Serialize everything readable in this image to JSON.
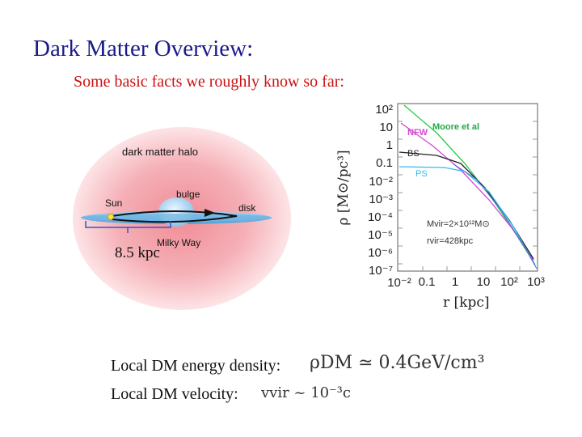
{
  "slide": {
    "title": "Dark Matter Overview:",
    "subtitle": "Some basic facts we roughly know so far:"
  },
  "halo_figure": {
    "halo_label": "dark matter halo",
    "bulge_label": "bulge",
    "sun_label": "Sun",
    "disk_label": "disk",
    "milky_way_label": "Milky Way",
    "distance_label": "8.5 kpc"
  },
  "density_plot": {
    "y_ticks": [
      "10²",
      "10",
      "1",
      "0.1",
      "10⁻²",
      "10⁻³",
      "10⁻⁴",
      "10⁻⁵",
      "10⁻⁶",
      "10⁻⁷"
    ],
    "x_ticks": [
      "10⁻²",
      "0.1",
      "1",
      "10",
      "10²",
      "10³"
    ],
    "y_axis_label": "ρ [M⊙/pc³]",
    "x_axis_label": "r [kpc]",
    "legend": {
      "nfw": "NFW",
      "moore": "Moore et al",
      "bs": "BS",
      "ps": "PS"
    },
    "params": {
      "mvir": "Mvir=2×10¹²M⊙",
      "rvir": "rvir=428kpc"
    }
  },
  "facts": [
    {
      "label": "Local DM energy density:",
      "formula": "ρDM ≃ 0.4GeV/cm³"
    },
    {
      "label": "Local DM velocity:",
      "formula": "vvir ~ 10⁻³c"
    }
  ]
}
